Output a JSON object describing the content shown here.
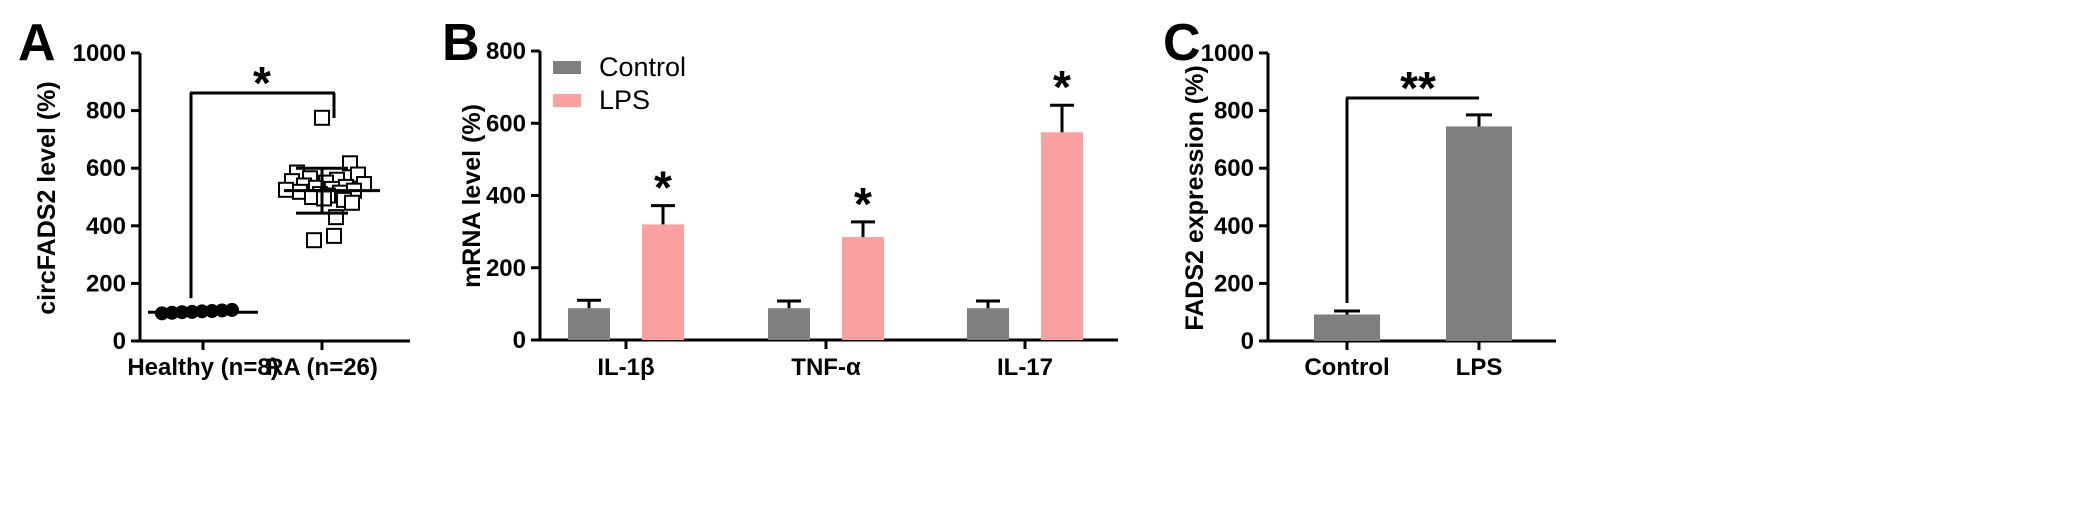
{
  "colors": {
    "control": "#7f7f7f",
    "lps": "#fba0a0",
    "axis": "#000000"
  },
  "chart_data": [
    {
      "panel": "A",
      "type": "scatter",
      "title": "",
      "xlabel": "",
      "ylabel": "circFADS2 level (%)",
      "ylim": [
        0,
        1000
      ],
      "yticks": [
        0,
        200,
        400,
        600,
        800,
        1000
      ],
      "categories": [
        "Healthy (n=8)",
        "RA (n=26)"
      ],
      "series": [
        {
          "values": [
            96,
            98,
            100,
            101,
            103,
            104,
            106,
            108
          ],
          "mean": 100,
          "sd": 5,
          "marker": "filled-circle"
        },
        {
          "values": [
            775,
            617,
            585,
            578,
            565,
            560,
            555,
            550,
            545,
            540,
            535,
            532,
            528,
            525,
            522,
            518,
            515,
            510,
            505,
            500,
            495,
            490,
            480,
            430,
            365,
            350
          ],
          "mean": 522,
          "sd": 78,
          "marker": "open-square"
        }
      ],
      "annotations": [
        {
          "text": "*",
          "between": [
            "Healthy (n=8)",
            "RA (n=26)"
          ]
        }
      ]
    },
    {
      "panel": "B",
      "type": "bar",
      "title": "",
      "xlabel": "",
      "ylabel": "mRNA level (%)",
      "ylim": [
        0,
        800
      ],
      "yticks": [
        0,
        200,
        400,
        600,
        800
      ],
      "categories": [
        "IL-1β",
        "TNF-α",
        "IL-17"
      ],
      "series": [
        {
          "name": "Control",
          "values": [
            88,
            88,
            88
          ],
          "error": [
            22,
            20,
            20
          ]
        },
        {
          "name": "LPS",
          "values": [
            320,
            285,
            575
          ],
          "error": [
            52,
            42,
            75
          ]
        }
      ],
      "legend": "top-left",
      "annotations": [
        {
          "text": "*",
          "category": "IL-1β"
        },
        {
          "text": "*",
          "category": "TNF-α"
        },
        {
          "text": "*",
          "category": "IL-17"
        }
      ]
    },
    {
      "panel": "C",
      "type": "bar",
      "title": "",
      "xlabel": "",
      "ylabel": "FADS2 expression (%)",
      "ylim": [
        0,
        1000
      ],
      "yticks": [
        0,
        200,
        400,
        600,
        800,
        1000
      ],
      "categories": [
        "Control",
        "LPS"
      ],
      "series": [
        {
          "values": [
            92,
            745
          ],
          "error": [
            12,
            40
          ]
        }
      ],
      "annotations": [
        {
          "text": "**",
          "between": [
            "Control",
            "LPS"
          ]
        }
      ]
    }
  ]
}
